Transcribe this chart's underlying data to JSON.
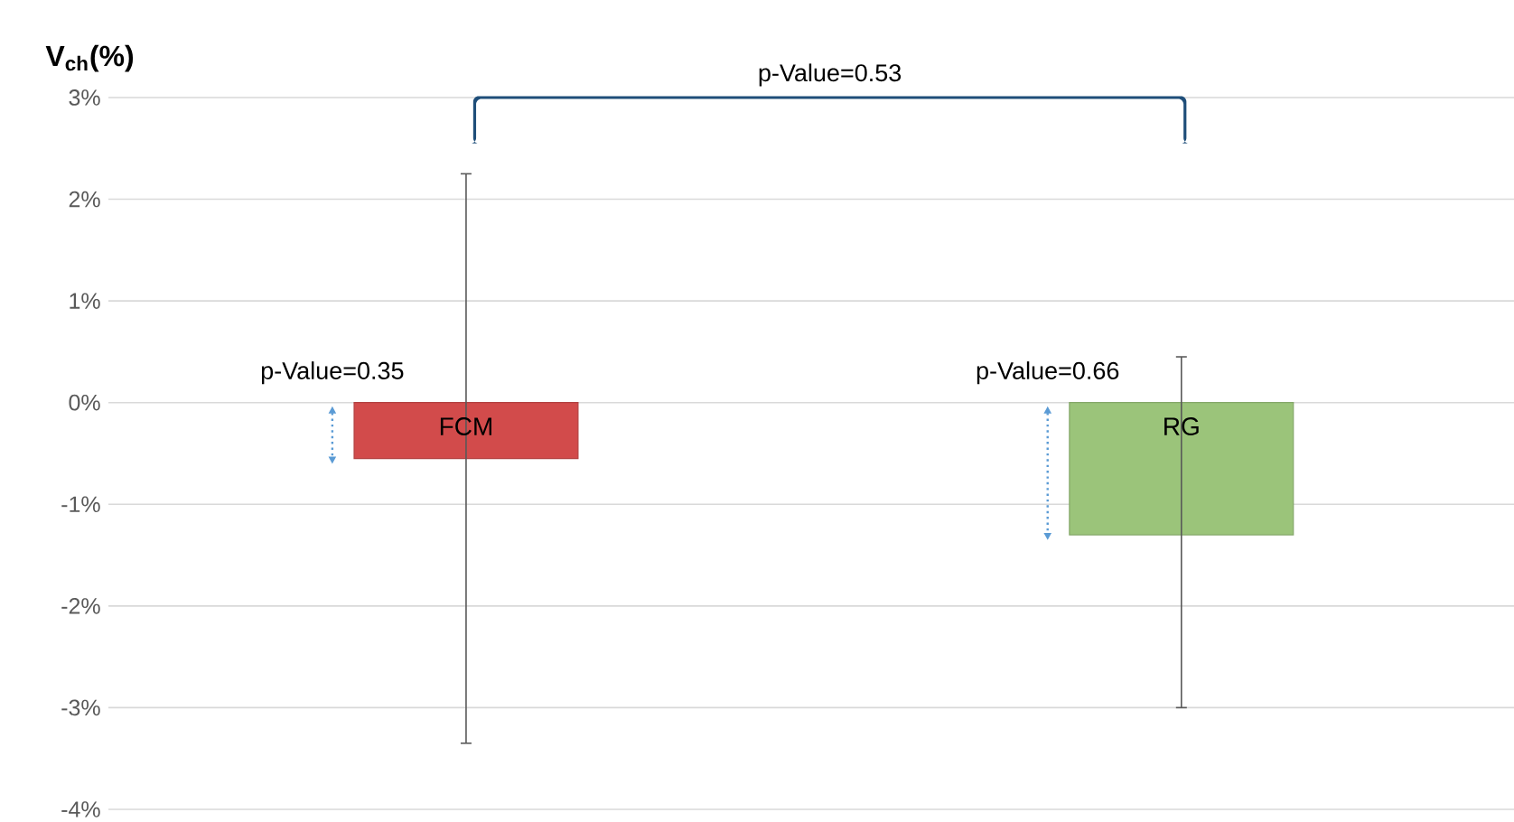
{
  "chart_data": {
    "type": "bar",
    "ylabel": "V$_{ch}$(%)",
    "categories": [
      "FCM",
      "RG"
    ],
    "values": [
      -0.55,
      -1.3
    ],
    "colors": [
      "#d24b4b",
      "#9bc47a"
    ],
    "errors": [
      [
        -3.35,
        2.25
      ],
      [
        -3.0,
        0.45
      ]
    ],
    "ylim": [
      -4,
      3
    ],
    "yticks": [
      {
        "value": 3,
        "label": "3%"
      },
      {
        "value": 2,
        "label": "2%"
      },
      {
        "value": 1,
        "label": "1%"
      },
      {
        "value": 0,
        "label": "0%"
      },
      {
        "value": -1,
        "label": "-1%"
      },
      {
        "value": -2,
        "label": "-2%"
      },
      {
        "value": -3,
        "label": "-3%"
      },
      {
        "value": -4,
        "label": "-4%"
      }
    ],
    "grid": "y",
    "tick_labels": "y",
    "annotations": [
      "p-Value=0.53",
      "p-Value=0.35",
      "p-Value=0.66"
    ]
  }
}
